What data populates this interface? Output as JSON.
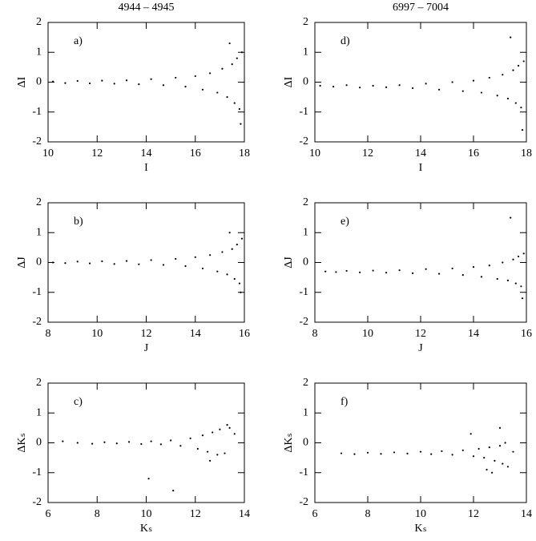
{
  "chart_data": [
    {
      "type": "scatter",
      "title": "4944 – 4945",
      "panel_label": "a)",
      "x_label": "I",
      "y_label": "ΔI",
      "color": "#000000",
      "xlim": [
        10,
        18
      ],
      "ylim": [
        -2,
        2
      ],
      "xticks": [
        10,
        12,
        14,
        16,
        18
      ],
      "yticks": [
        -2,
        -1,
        0,
        1,
        2
      ],
      "x": [
        10.2,
        10.7,
        11.2,
        11.7,
        12.2,
        12.7,
        13.2,
        13.7,
        14.2,
        14.7,
        15.2,
        15.6,
        16.0,
        16.3,
        16.6,
        16.9,
        17.1,
        17.3,
        17.5,
        17.6,
        17.7,
        17.8,
        17.9,
        17.4,
        17.85
      ],
      "values": [
        0.02,
        -0.03,
        0.04,
        -0.04,
        0.05,
        -0.05,
        0.06,
        -0.07,
        0.1,
        -0.1,
        0.15,
        -0.15,
        0.2,
        -0.25,
        0.3,
        -0.35,
        0.45,
        -0.5,
        0.6,
        -0.7,
        0.8,
        -0.9,
        1.0,
        1.3,
        -1.4
      ]
    },
    {
      "type": "scatter",
      "panel_label": "b)",
      "x_label": "J",
      "y_label": "ΔJ",
      "color": "#000000",
      "xlim": [
        8,
        16
      ],
      "ylim": [
        -2,
        2
      ],
      "xticks": [
        8,
        10,
        12,
        14,
        16
      ],
      "yticks": [
        -2,
        -1,
        0,
        1,
        2
      ],
      "x": [
        8.2,
        8.7,
        9.2,
        9.7,
        10.2,
        10.7,
        11.2,
        11.7,
        12.2,
        12.7,
        13.2,
        13.6,
        14.0,
        14.3,
        14.6,
        14.9,
        15.1,
        15.3,
        15.5,
        15.6,
        15.7,
        15.8,
        15.9,
        15.4,
        15.85
      ],
      "values": [
        0.0,
        -0.02,
        0.03,
        -0.03,
        0.04,
        -0.05,
        0.05,
        -0.06,
        0.08,
        -0.08,
        0.12,
        -0.12,
        0.18,
        -0.2,
        0.25,
        -0.3,
        0.35,
        -0.4,
        0.45,
        -0.55,
        0.6,
        -0.7,
        0.8,
        1.0,
        -1.0
      ]
    },
    {
      "type": "scatter",
      "panel_label": "c)",
      "x_label": "Kₛ",
      "y_label": "ΔKₛ",
      "color": "#000000",
      "xlim": [
        6,
        14
      ],
      "ylim": [
        -2,
        2
      ],
      "xticks": [
        6,
        8,
        10,
        12,
        14
      ],
      "yticks": [
        -2,
        -1,
        0,
        1,
        2
      ],
      "x": [
        6.6,
        7.2,
        7.8,
        8.3,
        8.8,
        9.3,
        9.8,
        10.2,
        10.6,
        11.0,
        11.4,
        11.8,
        12.1,
        12.3,
        12.5,
        12.7,
        12.9,
        13.0,
        13.2,
        13.4,
        13.6,
        10.1,
        11.1,
        12.6,
        13.3
      ],
      "values": [
        0.05,
        0.0,
        -0.03,
        0.02,
        -0.02,
        0.03,
        -0.04,
        0.05,
        -0.05,
        0.08,
        -0.1,
        0.15,
        -0.2,
        0.25,
        -0.3,
        0.35,
        -0.4,
        0.45,
        -0.35,
        0.5,
        0.3,
        -1.2,
        -1.6,
        -0.6,
        0.6
      ]
    },
    {
      "type": "scatter",
      "title": "6997 – 7004",
      "panel_label": "d)",
      "x_label": "I",
      "y_label": "ΔI",
      "color": "#000000",
      "xlim": [
        10,
        18
      ],
      "ylim": [
        -2,
        2
      ],
      "xticks": [
        10,
        12,
        14,
        16,
        18
      ],
      "yticks": [
        -2,
        -1,
        0,
        1,
        2
      ],
      "x": [
        10.2,
        10.7,
        11.2,
        11.7,
        12.2,
        12.7,
        13.2,
        13.7,
        14.2,
        14.7,
        15.2,
        15.6,
        16.0,
        16.3,
        16.6,
        16.9,
        17.1,
        17.3,
        17.5,
        17.6,
        17.7,
        17.8,
        17.9,
        17.4,
        17.85
      ],
      "values": [
        -0.12,
        -0.15,
        -0.1,
        -0.18,
        -0.12,
        -0.17,
        -0.1,
        -0.2,
        -0.05,
        -0.25,
        0.0,
        -0.3,
        0.05,
        -0.35,
        0.15,
        -0.45,
        0.25,
        -0.55,
        0.4,
        -0.7,
        0.55,
        -0.85,
        0.7,
        1.5,
        -1.6
      ]
    },
    {
      "type": "scatter",
      "panel_label": "e)",
      "x_label": "J",
      "y_label": "ΔJ",
      "color": "#000000",
      "xlim": [
        8,
        16
      ],
      "ylim": [
        -2,
        2
      ],
      "xticks": [
        8,
        10,
        12,
        14,
        16
      ],
      "yticks": [
        -2,
        -1,
        0,
        1,
        2
      ],
      "x": [
        8.4,
        8.8,
        9.2,
        9.7,
        10.2,
        10.7,
        11.2,
        11.7,
        12.2,
        12.7,
        13.2,
        13.6,
        14.0,
        14.3,
        14.6,
        14.9,
        15.1,
        15.3,
        15.5,
        15.6,
        15.7,
        15.8,
        15.9,
        15.4,
        15.85
      ],
      "values": [
        -0.3,
        -0.32,
        -0.28,
        -0.33,
        -0.27,
        -0.34,
        -0.26,
        -0.36,
        -0.22,
        -0.38,
        -0.2,
        -0.42,
        -0.15,
        -0.48,
        -0.1,
        -0.55,
        0.0,
        -0.6,
        0.1,
        -0.7,
        0.2,
        -0.8,
        0.3,
        1.5,
        -1.2
      ]
    },
    {
      "type": "scatter",
      "panel_label": "f)",
      "x_label": "Kₛ",
      "y_label": "ΔKₛ",
      "color": "#000000",
      "xlim": [
        6,
        14
      ],
      "ylim": [
        -2,
        2
      ],
      "xticks": [
        6,
        8,
        10,
        12,
        14
      ],
      "yticks": [
        -2,
        -1,
        0,
        1,
        2
      ],
      "x": [
        7.0,
        7.5,
        8.0,
        8.5,
        9.0,
        9.5,
        10.0,
        10.4,
        10.8,
        11.2,
        11.6,
        12.0,
        12.2,
        12.4,
        12.6,
        12.8,
        13.0,
        13.1,
        13.2,
        13.3,
        13.5,
        11.9,
        12.7,
        13.0,
        12.5
      ],
      "values": [
        -0.35,
        -0.38,
        -0.33,
        -0.37,
        -0.32,
        -0.36,
        -0.3,
        -0.38,
        -0.28,
        -0.4,
        -0.25,
        -0.45,
        -0.2,
        -0.5,
        -0.15,
        -0.6,
        -0.1,
        -0.7,
        0.0,
        -0.8,
        -0.3,
        0.3,
        -1.0,
        0.5,
        -0.9
      ]
    }
  ]
}
